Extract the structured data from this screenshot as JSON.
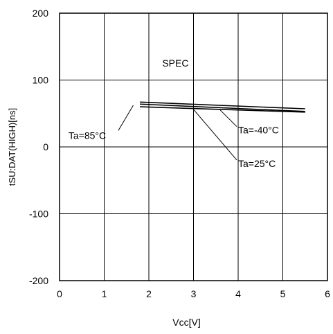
{
  "chart_data": {
    "type": "line",
    "title": "",
    "xlabel": "Vcc[V]",
    "ylabel": "tSU:DAT(HIGH)[ns]",
    "xlim": [
      0,
      6
    ],
    "ylim": [
      -200,
      200
    ],
    "xticks": [
      0,
      1,
      2,
      3,
      4,
      5,
      6
    ],
    "yticks": [
      -200,
      -100,
      0,
      100,
      200
    ],
    "grid": true,
    "series": [
      {
        "name": "Ta=85°C",
        "x": [
          1.8,
          5.5
        ],
        "y": [
          67,
          57
        ]
      },
      {
        "name": "Ta=25°C",
        "x": [
          1.8,
          5.5
        ],
        "y": [
          64,
          53
        ]
      },
      {
        "name": "Ta=-40°C",
        "x": [
          1.8,
          5.5
        ],
        "y": [
          60,
          52
        ]
      }
    ],
    "annotations": [
      {
        "text": "SPEC",
        "x": 2.3,
        "y": 120
      },
      {
        "text": "Ta=85°C",
        "x": 0.2,
        "y": 12,
        "target": [
          1.65,
          62
        ]
      },
      {
        "text": "Ta=-40°C",
        "x": 4.0,
        "y": 20,
        "target": [
          3.6,
          55
        ]
      },
      {
        "text": "Ta=25°C",
        "x": 4.0,
        "y": -30,
        "target": [
          3.0,
          56
        ]
      }
    ]
  }
}
